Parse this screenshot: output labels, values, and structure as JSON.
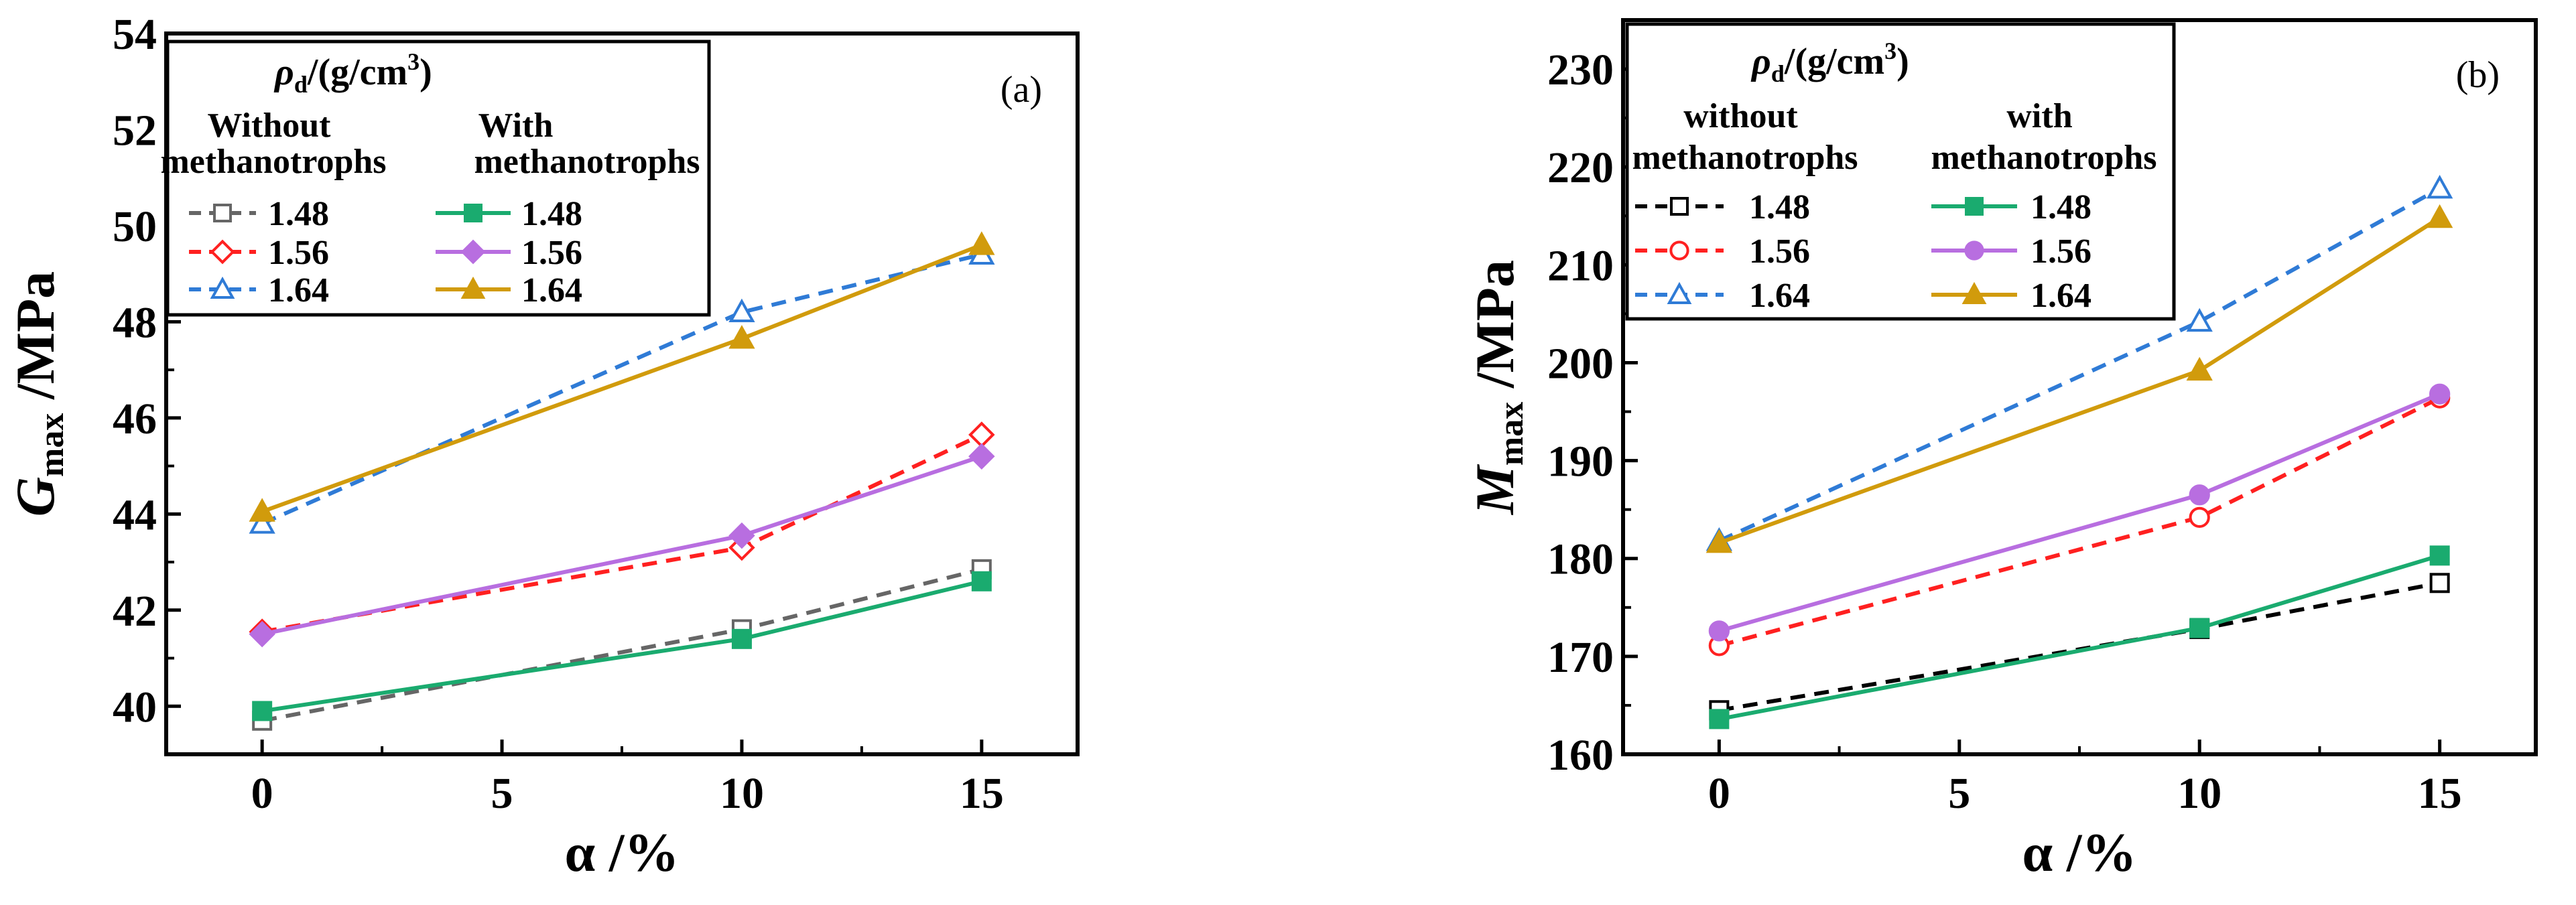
{
  "figure": {
    "panels": [
      {
        "ylabel_main": "G",
        "ylabel_sub": "max",
        "ylabel_unit": " /MPa",
        "xlabel": "α /%"
      },
      {
        "ylabel_main": "M",
        "ylabel_sub": "max",
        "ylabel_unit": " /MPa",
        "xlabel": "α /%"
      }
    ]
  },
  "chart_data": [
    {
      "type": "line",
      "panel_label": "(a)",
      "xlabel": "α /%",
      "ylabel": "Gmax /MPa",
      "xlim": [
        -2,
        17
      ],
      "ylim": [
        39,
        54
      ],
      "xticks": [
        0,
        5,
        10,
        15
      ],
      "yticks": [
        40,
        42,
        44,
        46,
        48,
        50,
        52,
        54
      ],
      "grid": false,
      "legend": {
        "title_symbol": "ρ",
        "title_sub": "d",
        "title_rest": "/(g/cm",
        "title_sup": "3",
        "title_close": ")",
        "group_without": [
          "Without",
          "methanotrophs"
        ],
        "group_with": [
          "With",
          "methanotrophs"
        ],
        "position": "top-left"
      },
      "x": [
        0,
        10,
        15
      ],
      "series": [
        {
          "name": "1.48",
          "group": "without",
          "color": "#666666",
          "marker": "square-open",
          "dashed": true,
          "values": [
            39.7,
            41.6,
            42.85
          ]
        },
        {
          "name": "1.56",
          "group": "without",
          "color": "#ff2020",
          "marker": "diamond-open",
          "dashed": true,
          "values": [
            41.55,
            43.3,
            45.65
          ]
        },
        {
          "name": "1.64",
          "group": "without",
          "color": "#2f7bd6",
          "marker": "triangle-open",
          "dashed": true,
          "values": [
            43.8,
            48.2,
            49.4
          ]
        },
        {
          "name": "1.48",
          "group": "with",
          "color": "#1aab6f",
          "marker": "square",
          "dashed": false,
          "values": [
            39.9,
            41.4,
            42.6
          ]
        },
        {
          "name": "1.56",
          "group": "with",
          "color": "#b86ee0",
          "marker": "diamond",
          "dashed": false,
          "values": [
            41.5,
            43.55,
            45.2
          ]
        },
        {
          "name": "1.64",
          "group": "with",
          "color": "#d19b0c",
          "marker": "triangle",
          "dashed": false,
          "values": [
            44.05,
            47.65,
            49.6
          ]
        }
      ]
    },
    {
      "type": "line",
      "panel_label": "(b)",
      "xlabel": "α /%",
      "ylabel": "Mmax /MPa",
      "xlim": [
        -2,
        17
      ],
      "ylim": [
        160,
        235
      ],
      "xticks": [
        0,
        5,
        10,
        15
      ],
      "yticks": [
        160,
        170,
        180,
        190,
        200,
        210,
        220,
        230
      ],
      "grid": false,
      "legend": {
        "title_symbol": "ρ",
        "title_sub": "d",
        "title_rest": "/(g/cm",
        "title_sup": "3",
        "title_close": ")",
        "group_without": [
          "without",
          "methanotrophs"
        ],
        "group_with": [
          "with",
          "methanotrophs"
        ],
        "position": "top-left"
      },
      "x": [
        0,
        10,
        15
      ],
      "series": [
        {
          "name": "1.48",
          "group": "without",
          "color": "#000000",
          "marker": "square-open",
          "dashed": true,
          "values": [
            164.5,
            172.8,
            177.5
          ]
        },
        {
          "name": "1.56",
          "group": "without",
          "color": "#ff2020",
          "marker": "circle-open",
          "dashed": true,
          "values": [
            171.1,
            184.2,
            196.4
          ]
        },
        {
          "name": "1.64",
          "group": "without",
          "color": "#2f7bd6",
          "marker": "triangle-open",
          "dashed": true,
          "values": [
            181.8,
            204.2,
            217.8
          ]
        },
        {
          "name": "1.48",
          "group": "with",
          "color": "#1aab6f",
          "marker": "square",
          "dashed": false,
          "values": [
            163.6,
            172.9,
            180.3
          ]
        },
        {
          "name": "1.56",
          "group": "with",
          "color": "#b86ee0",
          "marker": "circle",
          "dashed": false,
          "values": [
            172.6,
            186.5,
            196.8
          ]
        },
        {
          "name": "1.64",
          "group": "with",
          "color": "#d19b0c",
          "marker": "triangle",
          "dashed": false,
          "values": [
            181.6,
            199.2,
            214.8
          ]
        }
      ]
    }
  ]
}
